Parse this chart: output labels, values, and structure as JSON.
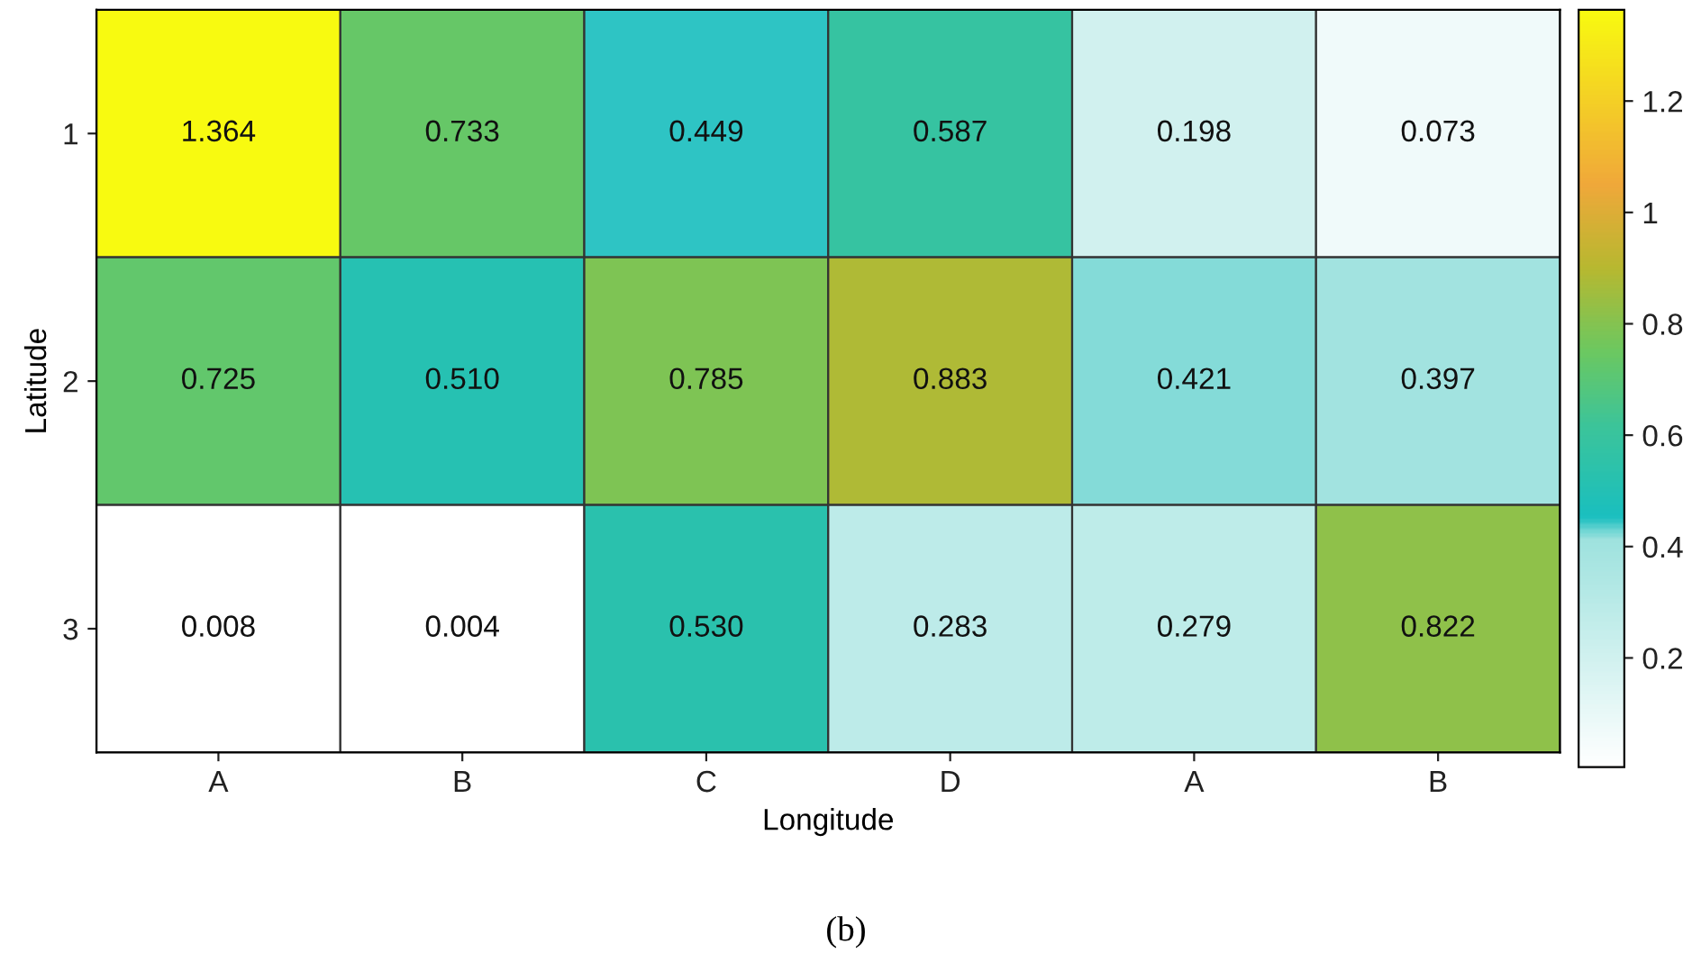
{
  "chart_data": {
    "type": "heatmap",
    "xlabel": "Longitude",
    "ylabel": "Latitude",
    "categories": [
      "A",
      "B",
      "C",
      "D",
      "A",
      "B"
    ],
    "y_categories": [
      "1",
      "2",
      "3"
    ],
    "cells": [
      [
        1.364,
        0.733,
        0.449,
        0.587,
        0.198,
        0.073
      ],
      [
        0.725,
        0.51,
        0.785,
        0.883,
        0.421,
        0.397
      ],
      [
        0.008,
        0.004,
        0.53,
        0.283,
        0.279,
        0.822
      ]
    ],
    "cell_labels": [
      [
        "1.364",
        "0.733",
        "0.449",
        "0.587",
        "0.198",
        "0.073"
      ],
      [
        "0.725",
        "0.510",
        "0.785",
        "0.883",
        "0.421",
        "0.397"
      ],
      [
        "0.008",
        "0.004",
        "0.530",
        "0.283",
        "0.279",
        "0.822"
      ]
    ],
    "clim": [
      0.004,
      1.364
    ],
    "cticks": [
      0.2,
      0.4,
      0.6,
      0.8,
      1,
      {
        "value": 1.2,
        "label": "1.2"
      }
    ],
    "annotations": [
      "(b)"
    ]
  }
}
